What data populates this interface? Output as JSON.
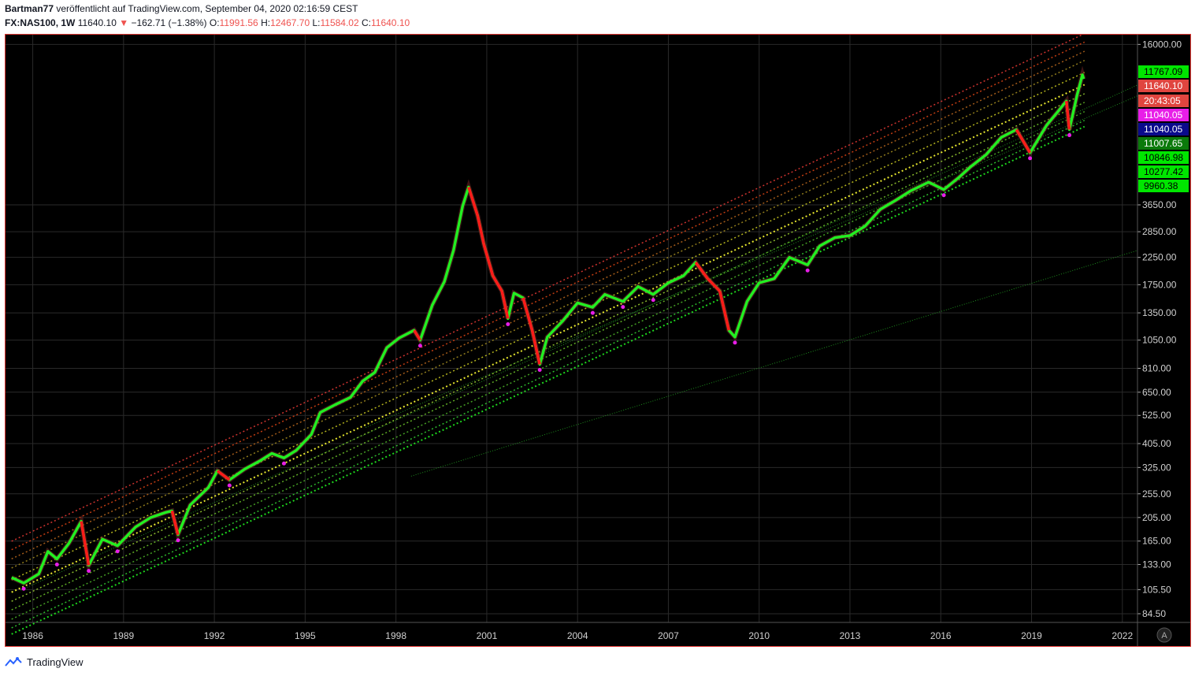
{
  "header": {
    "author": "Bartman77",
    "published": "veröffentlicht auf TradingView.com, September 04, 2020 02:16:59 CEST",
    "symbol": "FX:NAS100, 1W",
    "last": "11640.10",
    "change_arrow": "▼",
    "change": "−162.71 (−1.38%)",
    "o_label": "O:",
    "o_value": "11991.56",
    "h_label": "H:",
    "h_value": "12467.70",
    "l_label": "L:",
    "l_value": "11584.02",
    "c_label": "C:",
    "c_value": "11640.10"
  },
  "footer": {
    "brand": "TradingView",
    "logo_icon": "tradingview-logo-icon"
  },
  "chart_data": {
    "type": "line",
    "scale": "log",
    "grid": true,
    "background": "#000000",
    "x_ticks": [
      "1986",
      "1989",
      "1992",
      "1995",
      "1998",
      "2001",
      "2004",
      "2007",
      "2010",
      "2013",
      "2016",
      "2019",
      "2022"
    ],
    "y_ticks": [
      "84.50",
      "105.50",
      "133.00",
      "165.00",
      "205.00",
      "255.00",
      "325.00",
      "405.00",
      "525.00",
      "650.00",
      "810.00",
      "1050.00",
      "1350.00",
      "1750.00",
      "2250.00",
      "2850.00",
      "3650.00",
      "16000.00"
    ],
    "xlim": [
      1985.1,
      2022.5
    ],
    "ylim": [
      78,
      17500
    ],
    "series": [
      {
        "color": "#22ee22",
        "points": [
          [
            1985.3,
            118
          ],
          [
            1985.7,
            112
          ],
          [
            1986.2,
            122
          ],
          [
            1986.5,
            150
          ],
          [
            1986.8,
            140
          ],
          [
            1987.2,
            162
          ],
          [
            1987.6,
            198
          ],
          [
            1987.85,
            132
          ],
          [
            1988.3,
            168
          ],
          [
            1988.8,
            158
          ],
          [
            1989.4,
            188
          ],
          [
            1989.9,
            205
          ],
          [
            1990.4,
            215
          ],
          [
            1990.6,
            218
          ],
          [
            1990.8,
            175
          ],
          [
            1991.2,
            230
          ],
          [
            1991.8,
            270
          ],
          [
            1992.1,
            315
          ],
          [
            1992.5,
            290
          ],
          [
            1993.0,
            320
          ],
          [
            1993.5,
            345
          ],
          [
            1993.9,
            370
          ],
          [
            1994.3,
            355
          ],
          [
            1994.7,
            380
          ],
          [
            1995.2,
            440
          ],
          [
            1995.5,
            540
          ],
          [
            1996.0,
            580
          ],
          [
            1996.5,
            620
          ],
          [
            1996.9,
            720
          ],
          [
            1997.3,
            780
          ],
          [
            1997.7,
            980
          ],
          [
            1998.1,
            1070
          ],
          [
            1998.6,
            1150
          ],
          [
            1998.8,
            1050
          ],
          [
            1999.2,
            1450
          ],
          [
            1999.6,
            1800
          ],
          [
            1999.9,
            2400
          ],
          [
            2000.2,
            3600
          ],
          [
            2000.4,
            4300
          ],
          [
            2000.7,
            3300
          ],
          [
            2000.9,
            2550
          ],
          [
            2001.2,
            1900
          ],
          [
            2001.5,
            1650
          ],
          [
            2001.7,
            1280
          ],
          [
            2001.9,
            1620
          ],
          [
            2002.2,
            1550
          ],
          [
            2002.5,
            1150
          ],
          [
            2002.75,
            840
          ],
          [
            2003.0,
            1080
          ],
          [
            2003.5,
            1250
          ],
          [
            2004.0,
            1480
          ],
          [
            2004.5,
            1420
          ],
          [
            2004.9,
            1600
          ],
          [
            2005.5,
            1500
          ],
          [
            2006.0,
            1720
          ],
          [
            2006.5,
            1600
          ],
          [
            2007.0,
            1780
          ],
          [
            2007.5,
            1900
          ],
          [
            2007.9,
            2150
          ],
          [
            2008.3,
            1850
          ],
          [
            2008.7,
            1650
          ],
          [
            2009.0,
            1150
          ],
          [
            2009.2,
            1080
          ],
          [
            2009.6,
            1500
          ],
          [
            2010.0,
            1780
          ],
          [
            2010.5,
            1850
          ],
          [
            2011.0,
            2250
          ],
          [
            2011.6,
            2100
          ],
          [
            2012.0,
            2500
          ],
          [
            2012.5,
            2700
          ],
          [
            2013.0,
            2750
          ],
          [
            2013.5,
            3000
          ],
          [
            2014.0,
            3500
          ],
          [
            2014.5,
            3800
          ],
          [
            2015.0,
            4150
          ],
          [
            2015.6,
            4500
          ],
          [
            2016.1,
            4200
          ],
          [
            2016.6,
            4700
          ],
          [
            2017.0,
            5200
          ],
          [
            2017.5,
            5800
          ],
          [
            2018.0,
            6800
          ],
          [
            2018.5,
            7300
          ],
          [
            2018.95,
            5900
          ],
          [
            2019.5,
            7600
          ],
          [
            2019.9,
            8700
          ],
          [
            2020.15,
            9500
          ],
          [
            2020.25,
            7300
          ],
          [
            2020.5,
            10000
          ],
          [
            2020.68,
            12100
          ],
          [
            2020.72,
            11640
          ]
        ]
      }
    ],
    "price_labels": [
      {
        "text": "11767.09",
        "bg": "#00e600",
        "fg": "#000000"
      },
      {
        "text": "11640.10",
        "bg": "#e0453f",
        "fg": "#ffffff"
      },
      {
        "text": "20:43:05",
        "bg": "#e0453f",
        "fg": "#ffffff"
      },
      {
        "text": "11040.05",
        "bg": "#e81ee8",
        "fg": "#ffffff"
      },
      {
        "text": "11040.05",
        "bg": "#0a0a8c",
        "fg": "#ffffff"
      },
      {
        "text": "11007.65",
        "bg": "#0b7a0b",
        "fg": "#ffffff"
      },
      {
        "text": "10846.98",
        "bg": "#00e600",
        "fg": "#000000"
      },
      {
        "text": "10277.42",
        "bg": "#00e600",
        "fg": "#000000"
      },
      {
        "text": "9960.38",
        "bg": "#00e600",
        "fg": "#000000"
      }
    ],
    "scale_button": "A"
  }
}
